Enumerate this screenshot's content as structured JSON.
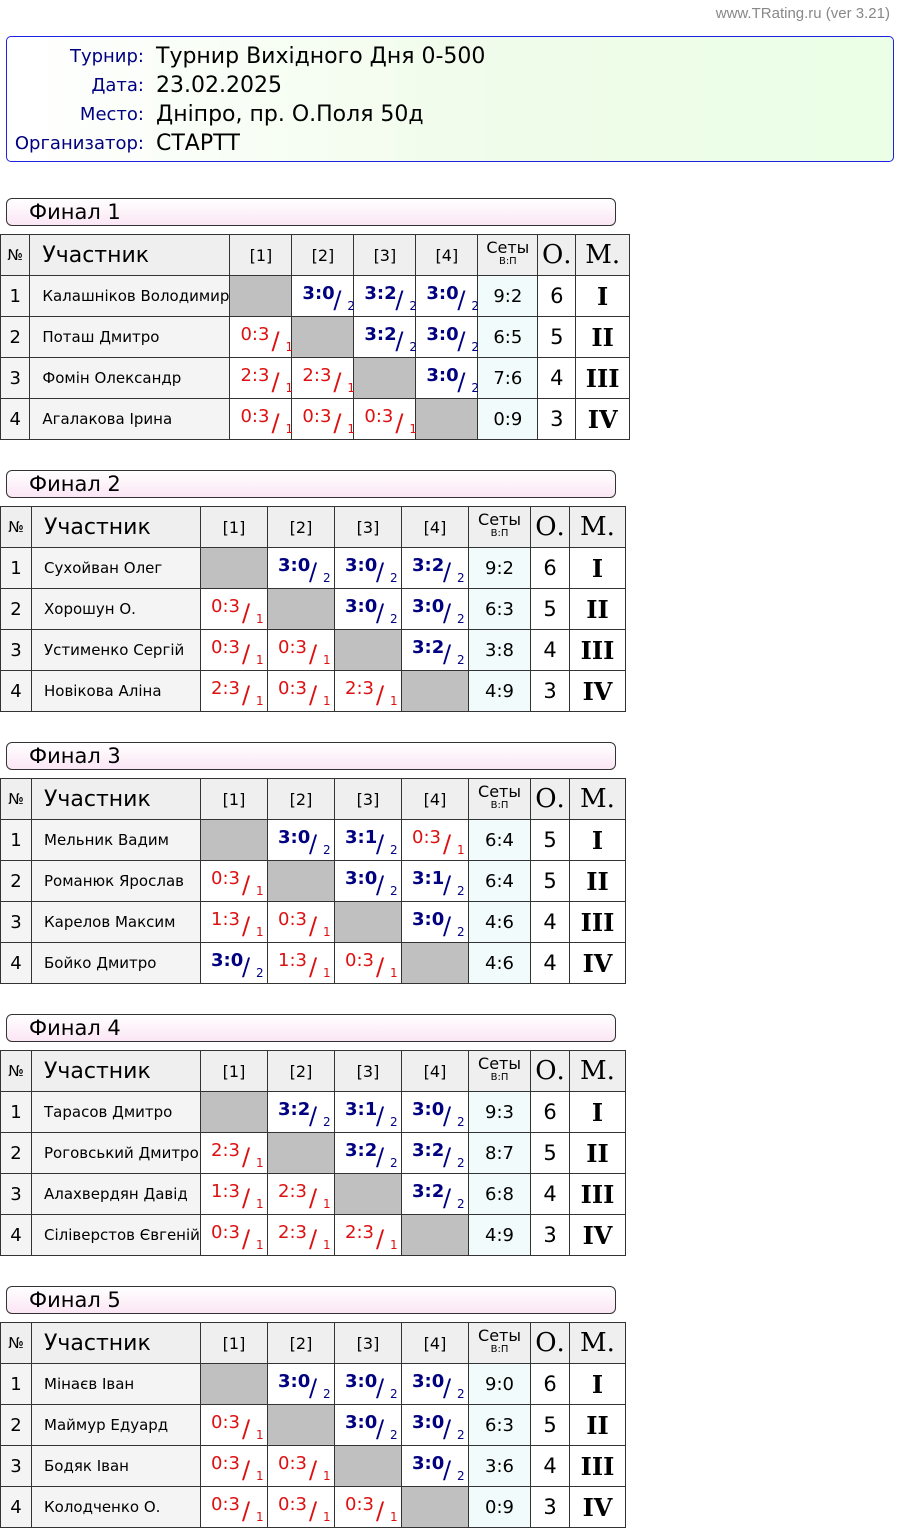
{
  "version": "www.TRating.ru (ver 3.21)",
  "info": [
    {
      "label": "Турнир:",
      "value": "Турнир Вихідного Дня 0-500"
    },
    {
      "label": "Дата:",
      "value": "23.02.2025"
    },
    {
      "label": "Место:",
      "value": "Дніпро, пр. О.Поля 50д"
    },
    {
      "label": "Организатор:",
      "value": "СТАРТТ"
    }
  ],
  "headers": {
    "num": "№",
    "name": "Участник",
    "cols": [
      "[1]",
      "[2]",
      "[3]",
      "[4]"
    ],
    "sets": "Сеты",
    "sets_sub": "В:П",
    "points": "О.",
    "place": "М."
  },
  "colors": {
    "win": "#000080",
    "loss": "#dd1111"
  },
  "groups": [
    {
      "title": "Финал 1",
      "rows": [
        {
          "n": "1",
          "name": "Калашніков Володимир",
          "cells": [
            null,
            [
              "3:0",
              "2"
            ],
            [
              "3:2",
              "2"
            ],
            [
              "3:0",
              "2"
            ]
          ],
          "sets": "9:2",
          "pts": "6",
          "place": "I"
        },
        {
          "n": "2",
          "name": "Поташ Дмитро",
          "cells": [
            [
              "0:3",
              "1"
            ],
            null,
            [
              "3:2",
              "2"
            ],
            [
              "3:0",
              "2"
            ]
          ],
          "sets": "6:5",
          "pts": "5",
          "place": "II"
        },
        {
          "n": "3",
          "name": "Фомін Олександр",
          "cells": [
            [
              "2:3",
              "1"
            ],
            [
              "2:3",
              "1"
            ],
            null,
            [
              "3:0",
              "2"
            ]
          ],
          "sets": "7:6",
          "pts": "4",
          "place": "III"
        },
        {
          "n": "4",
          "name": "Агалакова Ірина",
          "cells": [
            [
              "0:3",
              "1"
            ],
            [
              "0:3",
              "1"
            ],
            [
              "0:3",
              "1"
            ],
            null
          ],
          "sets": "0:9",
          "pts": "3",
          "place": "IV"
        }
      ]
    },
    {
      "title": "Финал 2",
      "rows": [
        {
          "n": "1",
          "name": "Сухойван Олег",
          "cells": [
            null,
            [
              "3:0",
              "2"
            ],
            [
              "3:0",
              "2"
            ],
            [
              "3:2",
              "2"
            ]
          ],
          "sets": "9:2",
          "pts": "6",
          "place": "I"
        },
        {
          "n": "2",
          "name": "Хорошун О.",
          "cells": [
            [
              "0:3",
              "1"
            ],
            null,
            [
              "3:0",
              "2"
            ],
            [
              "3:0",
              "2"
            ]
          ],
          "sets": "6:3",
          "pts": "5",
          "place": "II"
        },
        {
          "n": "3",
          "name": "Устименко Сергій",
          "cells": [
            [
              "0:3",
              "1"
            ],
            [
              "0:3",
              "1"
            ],
            null,
            [
              "3:2",
              "2"
            ]
          ],
          "sets": "3:8",
          "pts": "4",
          "place": "III"
        },
        {
          "n": "4",
          "name": "Новікова Аліна",
          "cells": [
            [
              "2:3",
              "1"
            ],
            [
              "0:3",
              "1"
            ],
            [
              "2:3",
              "1"
            ],
            null
          ],
          "sets": "4:9",
          "pts": "3",
          "place": "IV"
        }
      ]
    },
    {
      "title": "Финал 3",
      "rows": [
        {
          "n": "1",
          "name": "Мельник Вадим",
          "cells": [
            null,
            [
              "3:0",
              "2"
            ],
            [
              "3:1",
              "2"
            ],
            [
              "0:3",
              "1"
            ]
          ],
          "sets": "6:4",
          "pts": "5",
          "place": "I"
        },
        {
          "n": "2",
          "name": "Романюк Ярослав",
          "cells": [
            [
              "0:3",
              "1"
            ],
            null,
            [
              "3:0",
              "2"
            ],
            [
              "3:1",
              "2"
            ]
          ],
          "sets": "6:4",
          "pts": "5",
          "place": "II"
        },
        {
          "n": "3",
          "name": "Карелов Максим",
          "cells": [
            [
              "1:3",
              "1"
            ],
            [
              "0:3",
              "1"
            ],
            null,
            [
              "3:0",
              "2"
            ]
          ],
          "sets": "4:6",
          "pts": "4",
          "place": "III"
        },
        {
          "n": "4",
          "name": "Бойко Дмитро",
          "cells": [
            [
              "3:0",
              "2"
            ],
            [
              "1:3",
              "1"
            ],
            [
              "0:3",
              "1"
            ],
            null
          ],
          "sets": "4:6",
          "pts": "4",
          "place": "IV"
        }
      ]
    },
    {
      "title": "Финал 4",
      "rows": [
        {
          "n": "1",
          "name": "Тарасов Дмитро",
          "cells": [
            null,
            [
              "3:2",
              "2"
            ],
            [
              "3:1",
              "2"
            ],
            [
              "3:0",
              "2"
            ]
          ],
          "sets": "9:3",
          "pts": "6",
          "place": "I"
        },
        {
          "n": "2",
          "name": "Роговський Дмитро",
          "cells": [
            [
              "2:3",
              "1"
            ],
            null,
            [
              "3:2",
              "2"
            ],
            [
              "3:2",
              "2"
            ]
          ],
          "sets": "8:7",
          "pts": "5",
          "place": "II"
        },
        {
          "n": "3",
          "name": "Алахвердян Давід",
          "cells": [
            [
              "1:3",
              "1"
            ],
            [
              "2:3",
              "1"
            ],
            null,
            [
              "3:2",
              "2"
            ]
          ],
          "sets": "6:8",
          "pts": "4",
          "place": "III"
        },
        {
          "n": "4",
          "name": "Сіліверстов Євгеній",
          "cells": [
            [
              "0:3",
              "1"
            ],
            [
              "2:3",
              "1"
            ],
            [
              "2:3",
              "1"
            ],
            null
          ],
          "sets": "4:9",
          "pts": "3",
          "place": "IV"
        }
      ]
    },
    {
      "title": "Финал 5",
      "rows": [
        {
          "n": "1",
          "name": "Мінаєв Іван",
          "cells": [
            null,
            [
              "3:0",
              "2"
            ],
            [
              "3:0",
              "2"
            ],
            [
              "3:0",
              "2"
            ]
          ],
          "sets": "9:0",
          "pts": "6",
          "place": "I"
        },
        {
          "n": "2",
          "name": "Маймур Едуард",
          "cells": [
            [
              "0:3",
              "1"
            ],
            null,
            [
              "3:0",
              "2"
            ],
            [
              "3:0",
              "2"
            ]
          ],
          "sets": "6:3",
          "pts": "5",
          "place": "II"
        },
        {
          "n": "3",
          "name": "Бодяк Іван",
          "cells": [
            [
              "0:3",
              "1"
            ],
            [
              "0:3",
              "1"
            ],
            null,
            [
              "3:0",
              "2"
            ]
          ],
          "sets": "3:6",
          "pts": "4",
          "place": "III"
        },
        {
          "n": "4",
          "name": "Колодченко О.",
          "cells": [
            [
              "0:3",
              "1"
            ],
            [
              "0:3",
              "1"
            ],
            [
              "0:3",
              "1"
            ],
            null
          ],
          "sets": "0:9",
          "pts": "3",
          "place": "IV"
        }
      ]
    }
  ]
}
